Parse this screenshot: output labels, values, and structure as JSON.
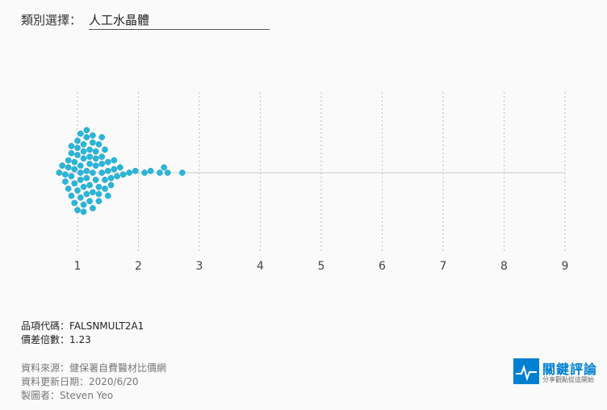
{
  "selector": {
    "label": "類別選擇：",
    "value": "人工水晶體"
  },
  "chart_data": {
    "type": "scatter",
    "subtype": "beeswarm",
    "xlim": [
      0.7,
      9
    ],
    "x_ticks": [
      "1",
      "2",
      "3",
      "4",
      "5",
      "6",
      "7",
      "8",
      "9"
    ],
    "grid": true,
    "point_color": "#29b6d8",
    "values": [
      0.7,
      0.75,
      0.8,
      0.8,
      0.85,
      0.85,
      0.85,
      0.9,
      0.9,
      0.9,
      0.9,
      0.95,
      0.95,
      0.95,
      0.95,
      1.0,
      1.0,
      1.0,
      1.0,
      1.0,
      1.05,
      1.05,
      1.05,
      1.05,
      1.05,
      1.1,
      1.1,
      1.1,
      1.1,
      1.1,
      1.1,
      1.15,
      1.15,
      1.15,
      1.15,
      1.15,
      1.2,
      1.2,
      1.2,
      1.2,
      1.2,
      1.25,
      1.25,
      1.25,
      1.25,
      1.25,
      1.3,
      1.3,
      1.3,
      1.3,
      1.35,
      1.35,
      1.35,
      1.35,
      1.4,
      1.4,
      1.4,
      1.4,
      1.45,
      1.45,
      1.45,
      1.5,
      1.5,
      1.5,
      1.55,
      1.55,
      1.6,
      1.6,
      1.65,
      1.7,
      1.75,
      1.85,
      1.95,
      2.1,
      2.2,
      2.35,
      2.42,
      2.48,
      2.72
    ]
  },
  "item": {
    "code_label": "品項代碼：",
    "code": "FALSNMULT2A1",
    "ratio_label": "價差倍數：",
    "ratio": "1.23"
  },
  "meta": {
    "source": "資料來源：健保署自費醫材比價網",
    "updated": "資料更新日期：2020/6/20",
    "author": "製圖者：Steven Yeo"
  },
  "logo": {
    "title": "關鍵評論",
    "subtitle": "分享觀點從這開始",
    "color": "#0080d0"
  }
}
